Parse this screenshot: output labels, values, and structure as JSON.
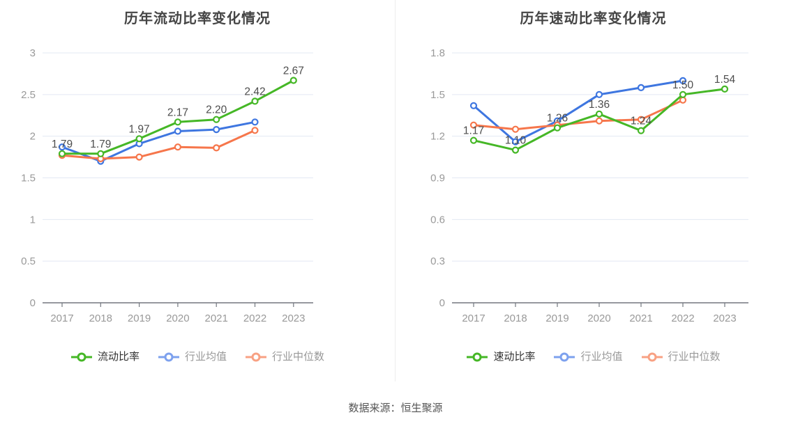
{
  "source_note": "数据来源：恒生聚源",
  "style": {
    "grid_line_color": "#e3e8f3",
    "axis_line_color": "#73777f",
    "axis_label_color": "#999999",
    "data_label_color": "#4d4d4d",
    "title_color": "#454545",
    "divider_color": "#ededed"
  },
  "chart_data": [
    {
      "type": "line",
      "title": "历年流动比率变化情况",
      "categories": [
        "2017",
        "2018",
        "2019",
        "2020",
        "2021",
        "2022",
        "2023"
      ],
      "y_axis": {
        "min": 0,
        "max": 3,
        "ticks": [
          "3",
          "2.5",
          "2",
          "1.5",
          "1",
          "0.5",
          "0"
        ]
      },
      "grid": true,
      "legend_position": "bottom",
      "series": [
        {
          "id": "current-ratio",
          "name": "流动比率",
          "color": "#45b726",
          "legend_color": "#45b726",
          "legend_text_color": "#333333",
          "show_labels": true,
          "values": [
            1.79,
            1.79,
            1.97,
            2.17,
            2.2,
            2.42,
            2.67
          ],
          "labels": [
            "1.79",
            "1.79",
            "1.97",
            "2.17",
            "2.20",
            "2.42",
            "2.67"
          ]
        },
        {
          "id": "industry-average",
          "name": "行业均值",
          "color": "#3e76e0",
          "legend_color": "#7da1ee",
          "legend_text_color": "#999999",
          "show_labels": false,
          "values": [
            1.87,
            1.7,
            1.91,
            2.06,
            2.08,
            2.17
          ],
          "labels": []
        },
        {
          "id": "industry-median",
          "name": "行业中位数",
          "color": "#f6764b",
          "legend_color": "#f8a183",
          "legend_text_color": "#999999",
          "show_labels": false,
          "values": [
            1.77,
            1.73,
            1.75,
            1.87,
            1.86,
            2.07
          ],
          "labels": []
        }
      ]
    },
    {
      "type": "line",
      "title": "历年速动比率变化情况",
      "categories": [
        "2017",
        "2018",
        "2019",
        "2020",
        "2021",
        "2022",
        "2023"
      ],
      "y_axis": {
        "min": 0,
        "max": 1.8,
        "ticks": [
          "1.8",
          "1.5",
          "1.2",
          "0.9",
          "0.6",
          "0.3",
          "0"
        ]
      },
      "grid": true,
      "legend_position": "bottom",
      "series": [
        {
          "id": "quick-ratio",
          "name": "速动比率",
          "color": "#45b726",
          "legend_color": "#45b726",
          "legend_text_color": "#333333",
          "show_labels": true,
          "values": [
            1.17,
            1.1,
            1.26,
            1.36,
            1.24,
            1.5,
            1.54
          ],
          "labels": [
            "1.17",
            "1.10",
            "1.26",
            "1.36",
            "1.24",
            "1.50",
            "1.54"
          ]
        },
        {
          "id": "industry-average",
          "name": "行业均值",
          "color": "#3e76e0",
          "legend_color": "#7da1ee",
          "legend_text_color": "#999999",
          "show_labels": false,
          "values": [
            1.42,
            1.16,
            1.31,
            1.5,
            1.55,
            1.6
          ],
          "labels": []
        },
        {
          "id": "industry-median",
          "name": "行业中位数",
          "color": "#f6764b",
          "legend_color": "#f8a183",
          "legend_text_color": "#999999",
          "show_labels": false,
          "values": [
            1.28,
            1.25,
            1.28,
            1.31,
            1.32,
            1.46
          ],
          "labels": []
        }
      ]
    }
  ]
}
